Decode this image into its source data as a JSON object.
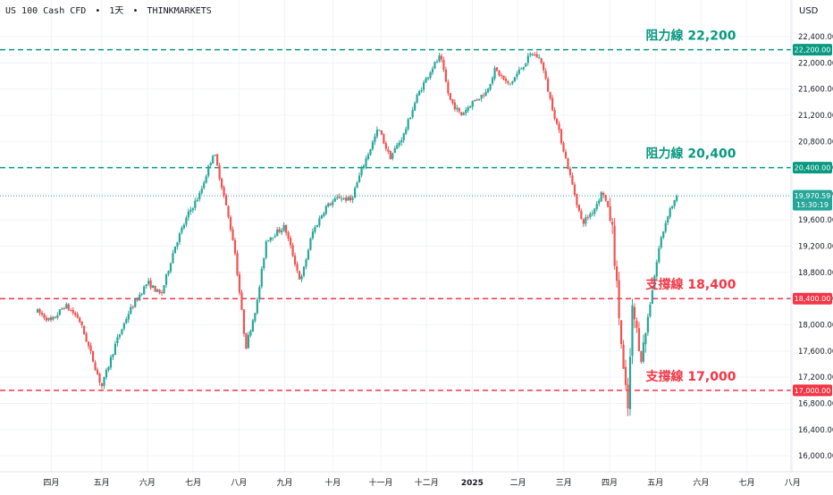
{
  "header": {
    "symbol": "US 100 Cash CFD",
    "sep1": "•",
    "interval": "1天",
    "sep2": "•",
    "broker": "THINKMARKETS",
    "currency": "USD"
  },
  "colors": {
    "up": "#26a69a",
    "down": "#ef5350",
    "resistance": "#089981",
    "support": "#f23645",
    "price_line": "#26a69a",
    "grid": "#f0f3fa",
    "text": "#131722"
  },
  "chart_data": {
    "type": "candlestick",
    "y_axis": {
      "min": 16000,
      "max": 22400,
      "ticks": [
        "22,400.00",
        "22,000.00",
        "21,600.00",
        "21,200.00",
        "20,800.00",
        "20,400.00",
        "20,000.00",
        "19,600.00",
        "19,200.00",
        "18,800.00",
        "18,400.00",
        "18,000.00",
        "17,600.00",
        "17,200.00",
        "16,800.00",
        "16,400.00",
        "16,000.00"
      ],
      "tick_values": [
        22400,
        22000,
        21600,
        21200,
        20800,
        20400,
        20000,
        19600,
        19200,
        18800,
        18400,
        18000,
        17600,
        17200,
        16800,
        16400,
        16000
      ]
    },
    "x_axis": {
      "labels": [
        "四月",
        "五月",
        "六月",
        "七月",
        "八月",
        "九月",
        "十月",
        "十一月",
        "十二月",
        "2025",
        "二月",
        "三月",
        "四月",
        "五月",
        "六月",
        "七月",
        "八月"
      ],
      "bold": [
        false,
        false,
        false,
        false,
        false,
        false,
        false,
        false,
        false,
        true,
        false,
        false,
        false,
        false,
        false,
        false,
        false
      ],
      "positions": [
        0.3,
        1.4,
        2.4,
        3.4,
        4.4,
        5.4,
        6.45,
        7.5,
        8.5,
        9.5,
        10.5,
        11.5,
        12.5,
        13.5,
        14.5,
        15.5,
        16.5
      ]
    },
    "levels": [
      {
        "value": 22200,
        "label": "阻力線 22,200",
        "axis_label": "22,200.00",
        "kind": "resistance"
      },
      {
        "value": 20400,
        "label": "阻力線 20,400",
        "axis_label": "20,400.00",
        "kind": "resistance"
      },
      {
        "value": 18400,
        "label": "支撐線 18,400",
        "axis_label": "18,400.00",
        "kind": "support"
      },
      {
        "value": 17000,
        "label": "支撐線 17,000",
        "axis_label": "17,000.00",
        "kind": "support"
      }
    ],
    "last_price": {
      "value": 19970.59,
      "label": "19,970.59",
      "countdown": "15:30:19"
    },
    "anchors": [
      [
        0.0,
        18200
      ],
      [
        0.3,
        18050
      ],
      [
        0.6,
        18300
      ],
      [
        0.9,
        18100
      ],
      [
        1.1,
        17700
      ],
      [
        1.4,
        17050
      ],
      [
        1.7,
        17700
      ],
      [
        2.0,
        18200
      ],
      [
        2.4,
        18650
      ],
      [
        2.7,
        18450
      ],
      [
        3.0,
        19200
      ],
      [
        3.3,
        19700
      ],
      [
        3.55,
        20000
      ],
      [
        3.85,
        20650
      ],
      [
        4.05,
        20050
      ],
      [
        4.3,
        19200
      ],
      [
        4.55,
        17650
      ],
      [
        4.8,
        18350
      ],
      [
        5.0,
        19300
      ],
      [
        5.4,
        19500
      ],
      [
        5.75,
        18650
      ],
      [
        6.0,
        19400
      ],
      [
        6.3,
        19800
      ],
      [
        6.6,
        19950
      ],
      [
        6.85,
        19900
      ],
      [
        7.1,
        20400
      ],
      [
        7.45,
        21000
      ],
      [
        7.7,
        20550
      ],
      [
        8.0,
        20900
      ],
      [
        8.3,
        21500
      ],
      [
        8.6,
        21900
      ],
      [
        8.8,
        22100
      ],
      [
        9.0,
        21450
      ],
      [
        9.25,
        21200
      ],
      [
        9.5,
        21400
      ],
      [
        9.8,
        21550
      ],
      [
        10.0,
        21900
      ],
      [
        10.3,
        21650
      ],
      [
        10.55,
        21900
      ],
      [
        10.8,
        22150
      ],
      [
        11.0,
        22050
      ],
      [
        11.2,
        21450
      ],
      [
        11.45,
        20800
      ],
      [
        11.7,
        20100
      ],
      [
        11.9,
        19550
      ],
      [
        12.15,
        19750
      ],
      [
        12.35,
        20050
      ],
      [
        12.55,
        19550
      ],
      [
        12.8,
        17300
      ],
      [
        12.9,
        16700
      ],
      [
        13.0,
        18250
      ],
      [
        13.2,
        17500
      ],
      [
        13.4,
        18400
      ],
      [
        13.6,
        19250
      ],
      [
        13.8,
        19750
      ],
      [
        14.0,
        19970
      ]
    ]
  }
}
